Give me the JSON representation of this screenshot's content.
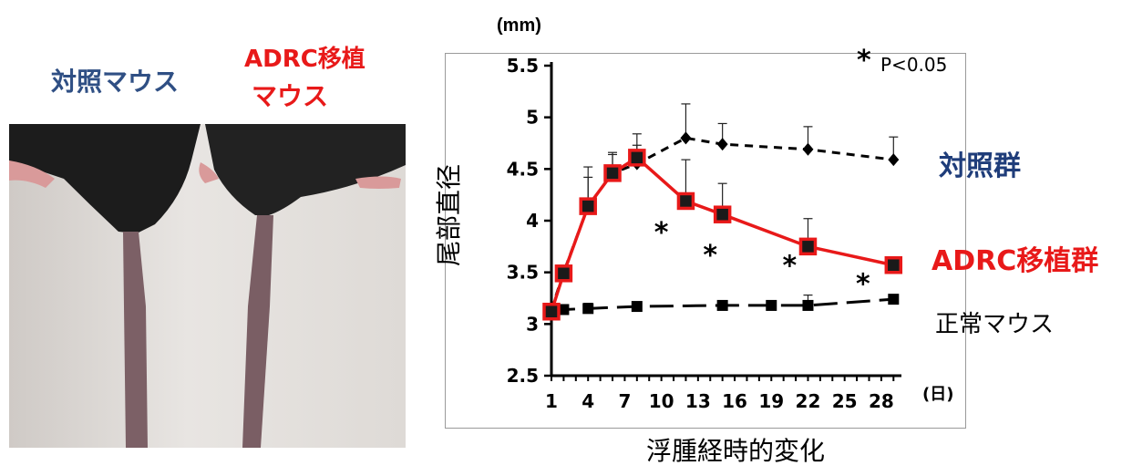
{
  "photo": {
    "control_label": "対照マウス",
    "adrc_label_line1": "ADRC移植",
    "adrc_label_line2": "マウス"
  },
  "chart_data": {
    "type": "line",
    "unit_label": "(mm)",
    "ylabel": "尾部直径",
    "xlabel": "浮腫経時的変化",
    "x_unit_label": "(日)",
    "significance_note": "P<0.05",
    "significance_symbol": "*",
    "ylim": [
      2.5,
      5.5
    ],
    "yticks": [
      "2.5",
      "3",
      "3.5",
      "4",
      "4.5",
      "5",
      "5.5"
    ],
    "xticks": [
      "1",
      "4",
      "7",
      "10",
      "13",
      "16",
      "19",
      "22",
      "25",
      "28"
    ],
    "series": [
      {
        "name": "対照群",
        "color": "#1f3d7a",
        "style": "dashed-diamond",
        "x": [
          1,
          2,
          4,
          6,
          8,
          12,
          15,
          22,
          29
        ],
        "y": [
          3.14,
          3.5,
          4.14,
          4.46,
          4.55,
          4.8,
          4.74,
          4.69,
          4.59
        ],
        "err": [
          0,
          0,
          0.28,
          0.2,
          0.18,
          0.33,
          0.2,
          0.22,
          0.22
        ]
      },
      {
        "name": "ADRC移植群",
        "color": "#e81919",
        "style": "solid-square",
        "x": [
          1,
          2,
          4,
          6,
          8,
          12,
          15,
          22,
          29
        ],
        "y": [
          3.12,
          3.49,
          4.14,
          4.46,
          4.61,
          4.19,
          4.06,
          3.75,
          3.57
        ],
        "err": [
          0,
          0,
          0.38,
          0.18,
          0.23,
          0.4,
          0.3,
          0.27,
          0
        ]
      },
      {
        "name": "正常マウス",
        "color": "#000000",
        "style": "longdash-square",
        "x": [
          1,
          2,
          4,
          8,
          15,
          19,
          22,
          29
        ],
        "y": [
          3.13,
          3.14,
          3.15,
          3.17,
          3.18,
          3.18,
          3.18,
          3.24
        ],
        "err": [
          0,
          0,
          0.05,
          0,
          0.04,
          0,
          0.1,
          0
        ]
      }
    ],
    "significance_markers": [
      {
        "x": 10,
        "y": 3.92
      },
      {
        "x": 14,
        "y": 3.7
      },
      {
        "x": 20.5,
        "y": 3.6
      },
      {
        "x": 26.5,
        "y": 3.42
      }
    ]
  }
}
